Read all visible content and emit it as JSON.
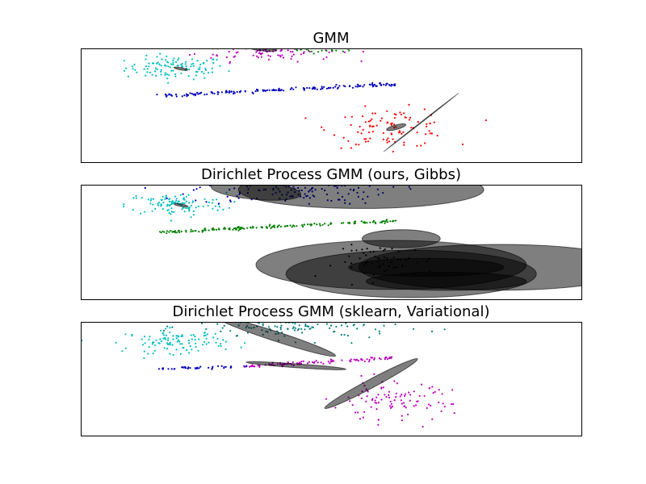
{
  "chart_data": [
    {
      "type": "scatter",
      "title": "GMM",
      "xlabel": "",
      "ylabel": "",
      "grid": false,
      "xlim": [
        -4.0,
        6.0
      ],
      "ylim": [
        -4.0,
        3.0
      ],
      "clusters": [
        {
          "color": "#00bfbf",
          "cx": -2.1,
          "cy": 1.8,
          "sx": 0.5,
          "sy": 0.35,
          "n": 110,
          "shape": "blob"
        },
        {
          "color": "#bf00bf",
          "cx": -0.3,
          "cy": 2.9,
          "sx": 0.7,
          "sy": 0.35,
          "n": 120,
          "shape": "blob"
        },
        {
          "color": "#008000",
          "cx": 0.9,
          "cy": 3.0,
          "sx": 0.4,
          "sy": 0.15,
          "n": 25,
          "shape": "blob"
        },
        {
          "color": "#0000bf",
          "x0": -2.4,
          "y0": 0.1,
          "x1": 2.3,
          "y1": 0.8,
          "spread": 0.05,
          "n": 160,
          "shape": "line"
        },
        {
          "color": "#ff0000",
          "cx": 2.2,
          "cy": -1.9,
          "sx": 0.6,
          "sy": 0.6,
          "n": 100,
          "shape": "blob"
        }
      ],
      "ellipses": [
        {
          "cx": -2.0,
          "cy": 1.75,
          "rx": 0.14,
          "ry": 0.07,
          "angle": -10
        },
        {
          "cx": -0.35,
          "cy": 2.95,
          "rx": 0.27,
          "ry": 0.11,
          "angle": -5
        },
        {
          "cx": 2.3,
          "cy": -1.85,
          "rx": 0.2,
          "ry": 0.14,
          "angle": 15
        },
        {
          "cx": 2.8,
          "cy": -1.55,
          "rx": 0.95,
          "ry": 0.02,
          "angle": 38
        }
      ]
    },
    {
      "type": "scatter",
      "title": "Dirichlet Process GMM (ours, Gibbs)",
      "xlabel": "",
      "ylabel": "",
      "grid": false,
      "xlim": [
        -4.0,
        6.0
      ],
      "ylim": [
        -4.0,
        3.0
      ],
      "clusters": [
        {
          "color": "#00bfbf",
          "cx": -2.1,
          "cy": 1.8,
          "sx": 0.5,
          "sy": 0.35,
          "n": 110,
          "shape": "blob"
        },
        {
          "color": "#0000bf",
          "cx": 0.2,
          "cy": 2.7,
          "sx": 1.0,
          "sy": 0.45,
          "n": 150,
          "shape": "blob"
        },
        {
          "color": "#008000",
          "x0": -2.4,
          "y0": 0.1,
          "x1": 2.3,
          "y1": 0.8,
          "spread": 0.05,
          "n": 160,
          "shape": "line"
        },
        {
          "color": "#000000",
          "cx": 2.1,
          "cy": -1.7,
          "sx": 0.5,
          "sy": 0.5,
          "n": 60,
          "shape": "blob"
        }
      ],
      "ellipses": [
        {
          "cx": -2.0,
          "cy": 1.75,
          "rx": 0.14,
          "ry": 0.07,
          "angle": -10
        },
        {
          "cx": -0.5,
          "cy": 2.65,
          "rx": 0.9,
          "ry": 0.55,
          "angle": -5
        },
        {
          "cx": 1.6,
          "cy": 2.7,
          "rx": 2.45,
          "ry": 1.15,
          "angle": 0
        },
        {
          "cx": 2.4,
          "cy": -0.3,
          "rx": 0.78,
          "ry": 0.55,
          "angle": 0
        },
        {
          "cx": 2.2,
          "cy": -1.9,
          "rx": 2.7,
          "ry": 1.5,
          "angle": 0
        },
        {
          "cx": 2.6,
          "cy": -2.45,
          "rx": 2.5,
          "ry": 1.45,
          "angle": 0
        },
        {
          "cx": 4.35,
          "cy": -2.05,
          "rx": 2.8,
          "ry": 1.4,
          "angle": 0
        },
        {
          "cx": 2.9,
          "cy": -2.05,
          "rx": 1.55,
          "ry": 0.55,
          "angle": 0
        },
        {
          "cx": 3.3,
          "cy": -2.9,
          "rx": 1.6,
          "ry": 0.55,
          "angle": 0
        }
      ]
    },
    {
      "type": "scatter",
      "title": "Dirichlet Process GMM (sklearn, Variational)",
      "xlabel": "",
      "ylabel": "",
      "grid": false,
      "xlim": [
        -4.0,
        6.0
      ],
      "ylim": [
        -4.0,
        3.0
      ],
      "clusters": [
        {
          "color": "#00bfbf",
          "cx": -2.1,
          "cy": 1.8,
          "sx": 0.5,
          "sy": 0.35,
          "n": 110,
          "shape": "blob"
        },
        {
          "color": "#008080",
          "cx": 0.3,
          "cy": 2.7,
          "sx": 1.0,
          "sy": 0.4,
          "n": 140,
          "shape": "blob"
        },
        {
          "color": "#0000bf",
          "x0": -2.4,
          "y0": 0.1,
          "x1": -0.7,
          "y1": 0.25,
          "spread": 0.04,
          "n": 40,
          "shape": "line"
        },
        {
          "color": "#bf00bf",
          "x0": -0.7,
          "y0": 0.25,
          "x1": 2.3,
          "y1": 0.8,
          "spread": 0.05,
          "n": 110,
          "shape": "line"
        },
        {
          "color": "#bf00bf",
          "cx": 2.2,
          "cy": -1.9,
          "sx": 0.6,
          "sy": 0.6,
          "n": 100,
          "shape": "blob"
        }
      ],
      "ellipses": [
        {
          "cx": -0.1,
          "cy": 2.1,
          "rx": 1.25,
          "ry": 0.3,
          "angle": -18
        },
        {
          "cx": 0.3,
          "cy": 0.3,
          "rx": 1.0,
          "ry": 0.12,
          "angle": -4
        },
        {
          "cx": 1.8,
          "cy": -0.8,
          "rx": 1.05,
          "ry": 0.27,
          "angle": 28
        }
      ]
    }
  ],
  "style": {
    "ellipse_fill": "#000000",
    "ellipse_opacity": 0.5,
    "frame_color": "#000000",
    "background": "#ffffff"
  }
}
